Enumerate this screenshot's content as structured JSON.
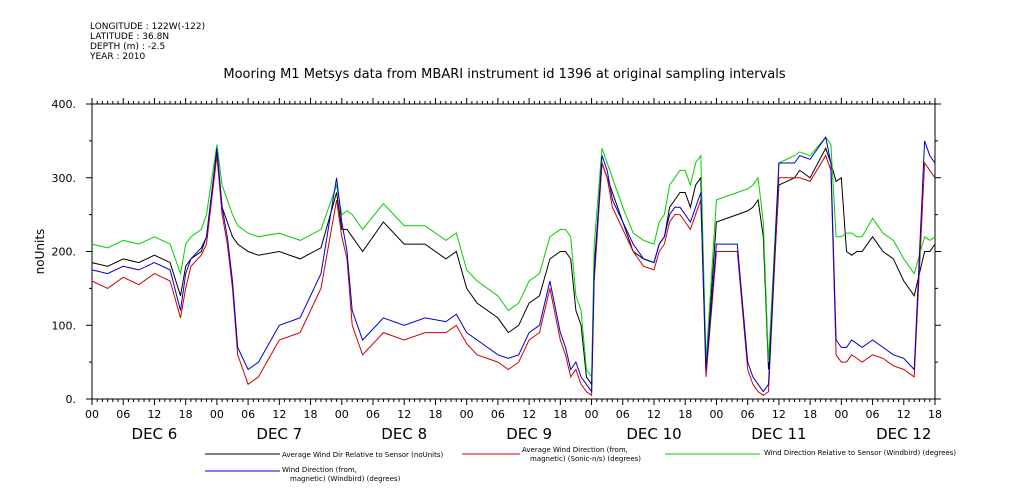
{
  "meta": {
    "longitude": "LONGITUDE : 122W(-122)",
    "latitude": "LATITUDE : 36.8N",
    "depth": "DEPTH (m) : -2.5",
    "year": "YEAR : 2010"
  },
  "chart_data": {
    "type": "line",
    "title": "Mooring M1 Metsys data from MBARI instrument id 1396 at original sampling intervals",
    "ylabel": "noUnits",
    "xlabel": "",
    "ylim": [
      0,
      400
    ],
    "yticks": [
      0,
      100,
      200,
      300,
      400
    ],
    "ytick_labels": [
      "0.",
      "100.",
      "200.",
      "300.",
      "400."
    ],
    "xlim_hours": [
      0,
      162
    ],
    "hour_tick_labels": [
      "00",
      "06",
      "12",
      "18"
    ],
    "day_labels": [
      "DEC 6",
      "DEC 7",
      "DEC 8",
      "DEC 9",
      "DEC 10",
      "DEC 11",
      "DEC 12"
    ],
    "grid": false,
    "x_units": "hours since DEC 6 00:00",
    "series": [
      {
        "name": "Average Wind Dir Relative to Sensor (noUnits)",
        "color": "#000000",
        "x": [
          0,
          3,
          6,
          9,
          12,
          15,
          17,
          18,
          19,
          21,
          22,
          24,
          25,
          26,
          27,
          28,
          30,
          32,
          36,
          40,
          44,
          47,
          48,
          49,
          50,
          52,
          56,
          60,
          64,
          68,
          70,
          72,
          74,
          78,
          80,
          82,
          84,
          86,
          88,
          90,
          91,
          92,
          93,
          94,
          95,
          96,
          96.5,
          98,
          99,
          100,
          102,
          104,
          106,
          108,
          109,
          110,
          111,
          112,
          113,
          114,
          115,
          116,
          117,
          118,
          120,
          124,
          126,
          127,
          128,
          129,
          130,
          132,
          135,
          136,
          138,
          141,
          142,
          143,
          144,
          145,
          146,
          147,
          148,
          150,
          152,
          154,
          156,
          158,
          160,
          161,
          162
        ],
        "values": [
          185,
          180,
          190,
          185,
          195,
          185,
          140,
          180,
          190,
          200,
          220,
          335,
          260,
          240,
          220,
          210,
          200,
          195,
          200,
          190,
          205,
          280,
          230,
          230,
          220,
          200,
          240,
          210,
          210,
          190,
          200,
          150,
          130,
          110,
          90,
          100,
          130,
          140,
          190,
          200,
          200,
          190,
          120,
          100,
          30,
          20,
          180,
          320,
          300,
          280,
          240,
          200,
          190,
          185,
          210,
          220,
          260,
          270,
          280,
          280,
          260,
          290,
          300,
          40,
          240,
          250,
          255,
          260,
          270,
          220,
          40,
          290,
          300,
          310,
          300,
          340,
          320,
          295,
          300,
          200,
          195,
          200,
          200,
          220,
          200,
          190,
          160,
          140,
          200,
          200,
          210
        ]
      },
      {
        "name": "Average Wind Direction (from, magnetic) (Sonic-n/s) (degrees)",
        "color": "#d00000",
        "x": [
          0,
          3,
          6,
          9,
          12,
          15,
          17,
          18,
          19,
          21,
          22,
          24,
          25,
          26,
          27,
          28,
          30,
          32,
          36,
          40,
          44,
          47,
          48,
          49,
          50,
          52,
          56,
          60,
          64,
          68,
          70,
          72,
          74,
          78,
          80,
          82,
          84,
          86,
          88,
          90,
          91,
          92,
          93,
          94,
          95,
          96,
          96.5,
          98,
          99,
          100,
          102,
          104,
          106,
          108,
          109,
          110,
          111,
          112,
          113,
          114,
          115,
          116,
          117,
          118,
          120,
          124,
          126,
          127,
          128,
          129,
          130,
          132,
          135,
          136,
          138,
          141,
          142,
          143,
          144,
          145,
          146,
          147,
          148,
          150,
          152,
          154,
          156,
          158,
          160,
          161,
          162
        ],
        "values": [
          160,
          150,
          165,
          155,
          170,
          160,
          110,
          150,
          180,
          195,
          210,
          330,
          250,
          210,
          150,
          60,
          20,
          30,
          80,
          90,
          150,
          270,
          220,
          190,
          100,
          60,
          90,
          80,
          90,
          90,
          100,
          75,
          60,
          50,
          40,
          50,
          80,
          90,
          150,
          80,
          60,
          30,
          40,
          20,
          10,
          5,
          160,
          320,
          300,
          260,
          230,
          200,
          180,
          175,
          200,
          210,
          240,
          250,
          250,
          240,
          230,
          250,
          270,
          30,
          200,
          200,
          40,
          20,
          10,
          5,
          10,
          300,
          300,
          300,
          295,
          330,
          310,
          60,
          50,
          50,
          60,
          55,
          50,
          60,
          55,
          45,
          40,
          30,
          320,
          310,
          300
        ]
      },
      {
        "name": "Wind Direction Relative to Sensor (Windbird) (degrees)",
        "color": "#00d000",
        "x": [
          0,
          3,
          6,
          9,
          12,
          15,
          17,
          18,
          19,
          21,
          22,
          24,
          25,
          26,
          27,
          28,
          30,
          32,
          36,
          40,
          44,
          47,
          48,
          49,
          50,
          52,
          56,
          60,
          64,
          68,
          70,
          72,
          74,
          78,
          80,
          82,
          84,
          86,
          88,
          90,
          91,
          92,
          93,
          94,
          95,
          96,
          96.5,
          98,
          99,
          100,
          102,
          104,
          106,
          108,
          109,
          110,
          111,
          112,
          113,
          114,
          115,
          116,
          117,
          118,
          120,
          124,
          126,
          127,
          128,
          129,
          130,
          132,
          135,
          136,
          138,
          141,
          142,
          143,
          144,
          145,
          146,
          147,
          148,
          150,
          152,
          154,
          156,
          158,
          160,
          161,
          162
        ],
        "values": [
          210,
          205,
          215,
          210,
          220,
          210,
          170,
          210,
          220,
          230,
          250,
          345,
          290,
          270,
          250,
          235,
          225,
          220,
          225,
          215,
          230,
          290,
          250,
          255,
          250,
          230,
          265,
          235,
          235,
          215,
          225,
          175,
          160,
          140,
          120,
          130,
          160,
          170,
          220,
          230,
          230,
          220,
          140,
          120,
          40,
          30,
          210,
          340,
          320,
          300,
          260,
          225,
          215,
          210,
          240,
          250,
          290,
          300,
          310,
          310,
          290,
          320,
          330,
          50,
          270,
          280,
          285,
          290,
          300,
          240,
          50,
          320,
          330,
          335,
          330,
          355,
          345,
          220,
          220,
          225,
          225,
          220,
          220,
          245,
          225,
          215,
          190,
          170,
          220,
          215,
          220
        ]
      },
      {
        "name": "Wind Direction (from, magnetic) (Windbird) (degrees)",
        "color": "#0000d0",
        "x": [
          0,
          3,
          6,
          9,
          12,
          15,
          17,
          18,
          19,
          21,
          22,
          24,
          25,
          26,
          27,
          28,
          30,
          32,
          36,
          40,
          44,
          47,
          48,
          49,
          50,
          52,
          56,
          60,
          64,
          68,
          70,
          72,
          74,
          78,
          80,
          82,
          84,
          86,
          88,
          90,
          91,
          92,
          93,
          94,
          95,
          96,
          96.5,
          98,
          99,
          100,
          102,
          104,
          106,
          108,
          109,
          110,
          111,
          112,
          113,
          114,
          115,
          116,
          117,
          118,
          120,
          124,
          126,
          127,
          128,
          129,
          130,
          132,
          135,
          136,
          138,
          141,
          142,
          143,
          144,
          145,
          146,
          147,
          148,
          150,
          152,
          154,
          156,
          158,
          160,
          161,
          162
        ],
        "values": [
          175,
          170,
          180,
          175,
          185,
          175,
          120,
          170,
          190,
          205,
          220,
          340,
          260,
          220,
          160,
          70,
          40,
          50,
          100,
          110,
          170,
          300,
          240,
          200,
          120,
          80,
          110,
          100,
          110,
          105,
          115,
          90,
          80,
          60,
          55,
          60,
          90,
          100,
          160,
          90,
          70,
          40,
          50,
          30,
          20,
          10,
          170,
          330,
          310,
          270,
          240,
          210,
          190,
          185,
          210,
          220,
          250,
          260,
          260,
          250,
          240,
          260,
          280,
          40,
          210,
          210,
          50,
          30,
          20,
          10,
          20,
          320,
          320,
          330,
          325,
          355,
          320,
          80,
          70,
          70,
          80,
          75,
          70,
          80,
          70,
          60,
          55,
          40,
          350,
          330,
          320
        ]
      }
    ],
    "legend": [
      {
        "label": "Average Wind Dir Relative to Sensor (noUnits)",
        "color": "#000000"
      },
      {
        "label": "Average Wind Direction (from,\nmagnetic) (Sonic-n/s) (degrees)",
        "color": "#d00000"
      },
      {
        "label": "Wind Direction Relative to Sensor (Windbird) (degrees)",
        "color": "#00d000"
      },
      {
        "label": "Wind Direction (from,\nmagnetic) (Windbird) (degrees)",
        "color": "#0000d0"
      }
    ]
  }
}
